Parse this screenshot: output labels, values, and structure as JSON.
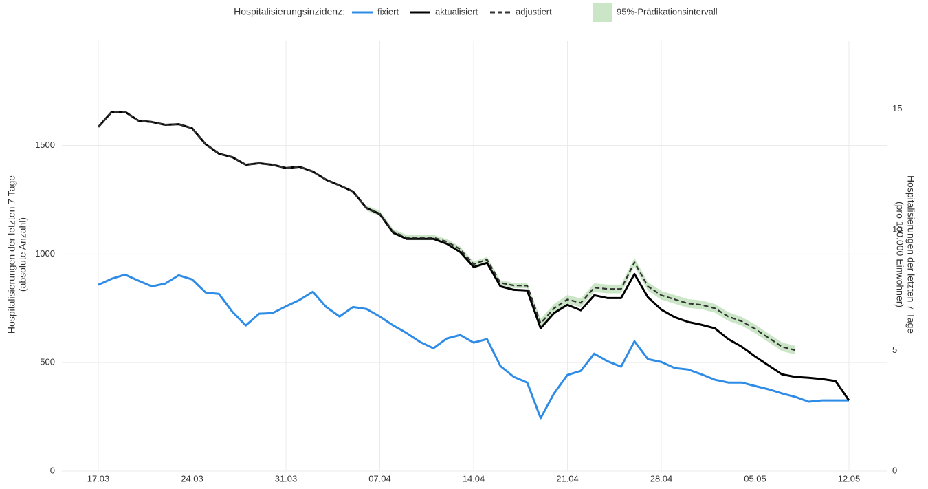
{
  "chart_data": {
    "type": "line",
    "legend_title": "Hospitalisierungsinzidenz:",
    "y_label": [
      "Hospitalisierungen der letzten 7 Tage",
      "(absolute Anzahl)"
    ],
    "y2_label": [
      "Hospitalisierungen der letzten 7 Tage",
      "(pro 100.000 Einwohner)"
    ],
    "categories": [
      "17.03",
      null,
      null,
      null,
      null,
      null,
      null,
      "24.03",
      null,
      null,
      null,
      null,
      null,
      null,
      "31.03",
      null,
      null,
      null,
      null,
      null,
      null,
      "07.04",
      null,
      null,
      null,
      null,
      null,
      null,
      "14.04",
      null,
      null,
      null,
      null,
      null,
      null,
      "21.04",
      null,
      null,
      null,
      null,
      null,
      null,
      "28.04",
      null,
      null,
      null,
      null,
      null,
      null,
      "05.05",
      null,
      null,
      null,
      null,
      null,
      null,
      "12.05"
    ],
    "ylim": [
      0,
      1980
    ],
    "yticks": [
      0,
      500,
      1000,
      1500
    ],
    "y2lim": [
      0,
      17.8
    ],
    "y2ticks": [
      0,
      5,
      10,
      15
    ],
    "grid": true,
    "series": [
      {
        "name": "fixiert",
        "color": "#2e8ce6",
        "values": [
          858,
          886,
          905,
          877,
          851,
          864,
          902,
          883,
          823,
          816,
          734,
          671,
          725,
          728,
          759,
          788,
          826,
          756,
          712,
          756,
          747,
          712,
          671,
          636,
          595,
          566,
          611,
          627,
          592,
          608,
          484,
          434,
          408,
          244,
          358,
          443,
          462,
          541,
          506,
          481,
          598,
          516,
          503,
          475,
          468,
          446,
          421,
          408,
          408,
          392,
          377,
          358,
          342,
          320,
          326,
          326,
          326
        ]
      },
      {
        "name": "aktualisiert",
        "color": "#000000",
        "values": [
          1585,
          1655,
          1655,
          1614,
          1608,
          1595,
          1598,
          1579,
          1506,
          1462,
          1446,
          1411,
          1418,
          1411,
          1396,
          1402,
          1380,
          1342,
          1316,
          1288,
          1212,
          1184,
          1098,
          1070,
          1070,
          1070,
          1047,
          1009,
          940,
          959,
          851,
          835,
          832,
          658,
          728,
          766,
          741,
          810,
          797,
          797,
          908,
          801,
          744,
          709,
          687,
          674,
          658,
          608,
          573,
          528,
          487,
          446,
          434,
          430,
          424,
          415,
          326
        ]
      },
      {
        "name": "adjustiert",
        "color": "#333333",
        "dash": true,
        "values": [
          1585,
          1655,
          1655,
          1614,
          1608,
          1595,
          1598,
          1579,
          1506,
          1462,
          1446,
          1411,
          1418,
          1411,
          1396,
          1402,
          1380,
          1342,
          1316,
          1288,
          1212,
          1187,
          1103,
          1076,
          1076,
          1076,
          1057,
          1022,
          953,
          975,
          867,
          855,
          854,
          681,
          750,
          791,
          775,
          845,
          839,
          839,
          962,
          851,
          810,
          791,
          772,
          766,
          750,
          712,
          690,
          655,
          614,
          573,
          557,
          null,
          null,
          null,
          null
        ]
      }
    ],
    "band": {
      "name": "95%-Prädikationsintervall",
      "color": "#a8d5a2",
      "lower": [
        null,
        null,
        null,
        null,
        null,
        null,
        null,
        null,
        null,
        null,
        null,
        null,
        null,
        null,
        null,
        null,
        null,
        null,
        null,
        null,
        1200,
        1175,
        1091,
        1064,
        1064,
        1064,
        1045,
        1010,
        941,
        963,
        855,
        843,
        842,
        661,
        730,
        771,
        755,
        825,
        819,
        819,
        942,
        831,
        790,
        771,
        752,
        746,
        730,
        692,
        670,
        635,
        594,
        553,
        537,
        null,
        null,
        null,
        null
      ],
      "upper": [
        null,
        null,
        null,
        null,
        null,
        null,
        null,
        null,
        null,
        null,
        null,
        null,
        null,
        null,
        null,
        null,
        null,
        null,
        null,
        null,
        1224,
        1199,
        1115,
        1088,
        1088,
        1088,
        1069,
        1034,
        965,
        987,
        879,
        867,
        866,
        701,
        770,
        811,
        795,
        865,
        859,
        859,
        982,
        871,
        830,
        811,
        792,
        786,
        770,
        732,
        710,
        675,
        634,
        593,
        577,
        null,
        null,
        null,
        null
      ]
    }
  }
}
